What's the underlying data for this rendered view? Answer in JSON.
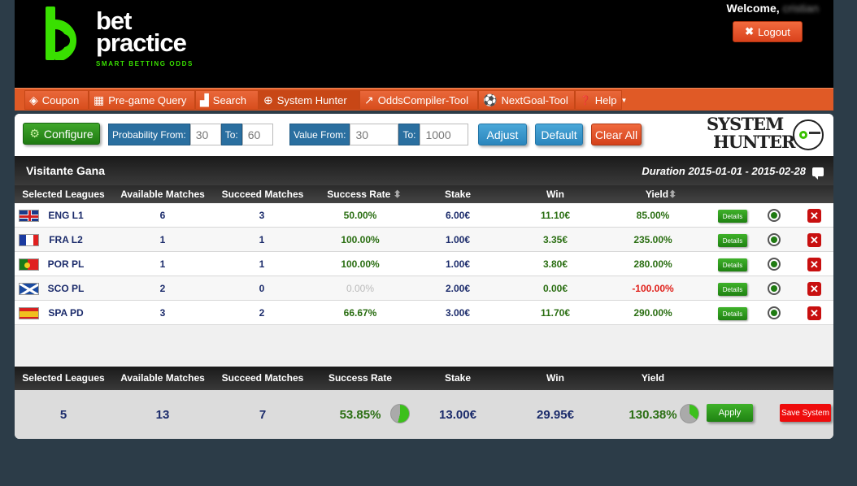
{
  "header": {
    "logo_line1": "bet",
    "logo_line2": "practice",
    "logo_tagline": "SMART BETTING ODDS",
    "welcome_label": "Welcome,",
    "username": "cristian",
    "logout_label": "Logout",
    "logout_icon": "close-icon"
  },
  "nav": {
    "items": [
      {
        "label": "Coupon",
        "icon": "coupon-icon"
      },
      {
        "label": "Pre-game Query",
        "icon": "ticket-icon"
      },
      {
        "label": "Search",
        "icon": "chart-search-icon"
      },
      {
        "label": "System Hunter",
        "icon": "crosshair-icon"
      },
      {
        "label": "OddsCompiler-Tool",
        "icon": "trend-icon"
      },
      {
        "label": "NextGoal-Tool",
        "icon": "ball-icon"
      },
      {
        "label": "Help",
        "icon": "help-icon"
      }
    ]
  },
  "toolbar": {
    "configure_label": "Configure",
    "prob_from_label": "Probability From:",
    "prob_from_value": "30",
    "prob_to_label": "To:",
    "prob_to_value": "60",
    "value_from_label": "Value From:",
    "value_from_value": "30",
    "value_to_label": "To:",
    "value_to_value": "1000",
    "adjust_label": "Adjust",
    "default_label": "Default",
    "clear_label": "Clear All",
    "system_logo_line1": "SYSTEM",
    "system_logo_line2": "HUNTER"
  },
  "section": {
    "title": "Visitante Gana",
    "duration": "Duration 2015-01-01 - 2015-02-28"
  },
  "columns": [
    "Selected Leagues",
    "Available Matches",
    "Succeed Matches",
    "Success Rate",
    "Stake",
    "Win",
    "Yield"
  ],
  "rows": [
    {
      "flag": "uk",
      "league": "ENG L1",
      "available": "6",
      "succeed": "3",
      "rate": "50.00%",
      "stake": "6.00€",
      "win": "11.10€",
      "yield": "85.00%",
      "yield_color": "green",
      "rate_color": "green",
      "details": "Details"
    },
    {
      "flag": "fr",
      "league": "FRA L2",
      "available": "1",
      "succeed": "1",
      "rate": "100.00%",
      "stake": "1.00€",
      "win": "3.35€",
      "yield": "235.00%",
      "yield_color": "green",
      "rate_color": "green",
      "details": "Details"
    },
    {
      "flag": "pt",
      "league": "POR PL",
      "available": "1",
      "succeed": "1",
      "rate": "100.00%",
      "stake": "1.00€",
      "win": "3.80€",
      "yield": "280.00%",
      "yield_color": "green",
      "rate_color": "green",
      "details": "Details"
    },
    {
      "flag": "sco",
      "league": "SCO PL",
      "available": "2",
      "succeed": "0",
      "rate": "0.00%",
      "stake": "2.00€",
      "win": "0.00€",
      "yield": "-100.00%",
      "yield_color": "red",
      "rate_color": "grey",
      "details": "Details"
    },
    {
      "flag": "es",
      "league": "SPA PD",
      "available": "3",
      "succeed": "2",
      "rate": "66.67%",
      "stake": "3.00€",
      "win": "11.70€",
      "yield": "290.00%",
      "yield_color": "green",
      "rate_color": "green",
      "details": "Details"
    }
  ],
  "summary": {
    "leagues": "5",
    "available": "13",
    "succeed": "7",
    "rate": "53.85%",
    "stake": "13.00€",
    "win": "29.95€",
    "yield": "130.38%",
    "apply_label": "Apply",
    "save_label": "Save System"
  },
  "colors": {
    "brand_green": "#39e000",
    "nav_orange": "#e05a26",
    "navy": "#1b2b6b",
    "positive": "#2a6e12",
    "negative": "#e0201a"
  }
}
